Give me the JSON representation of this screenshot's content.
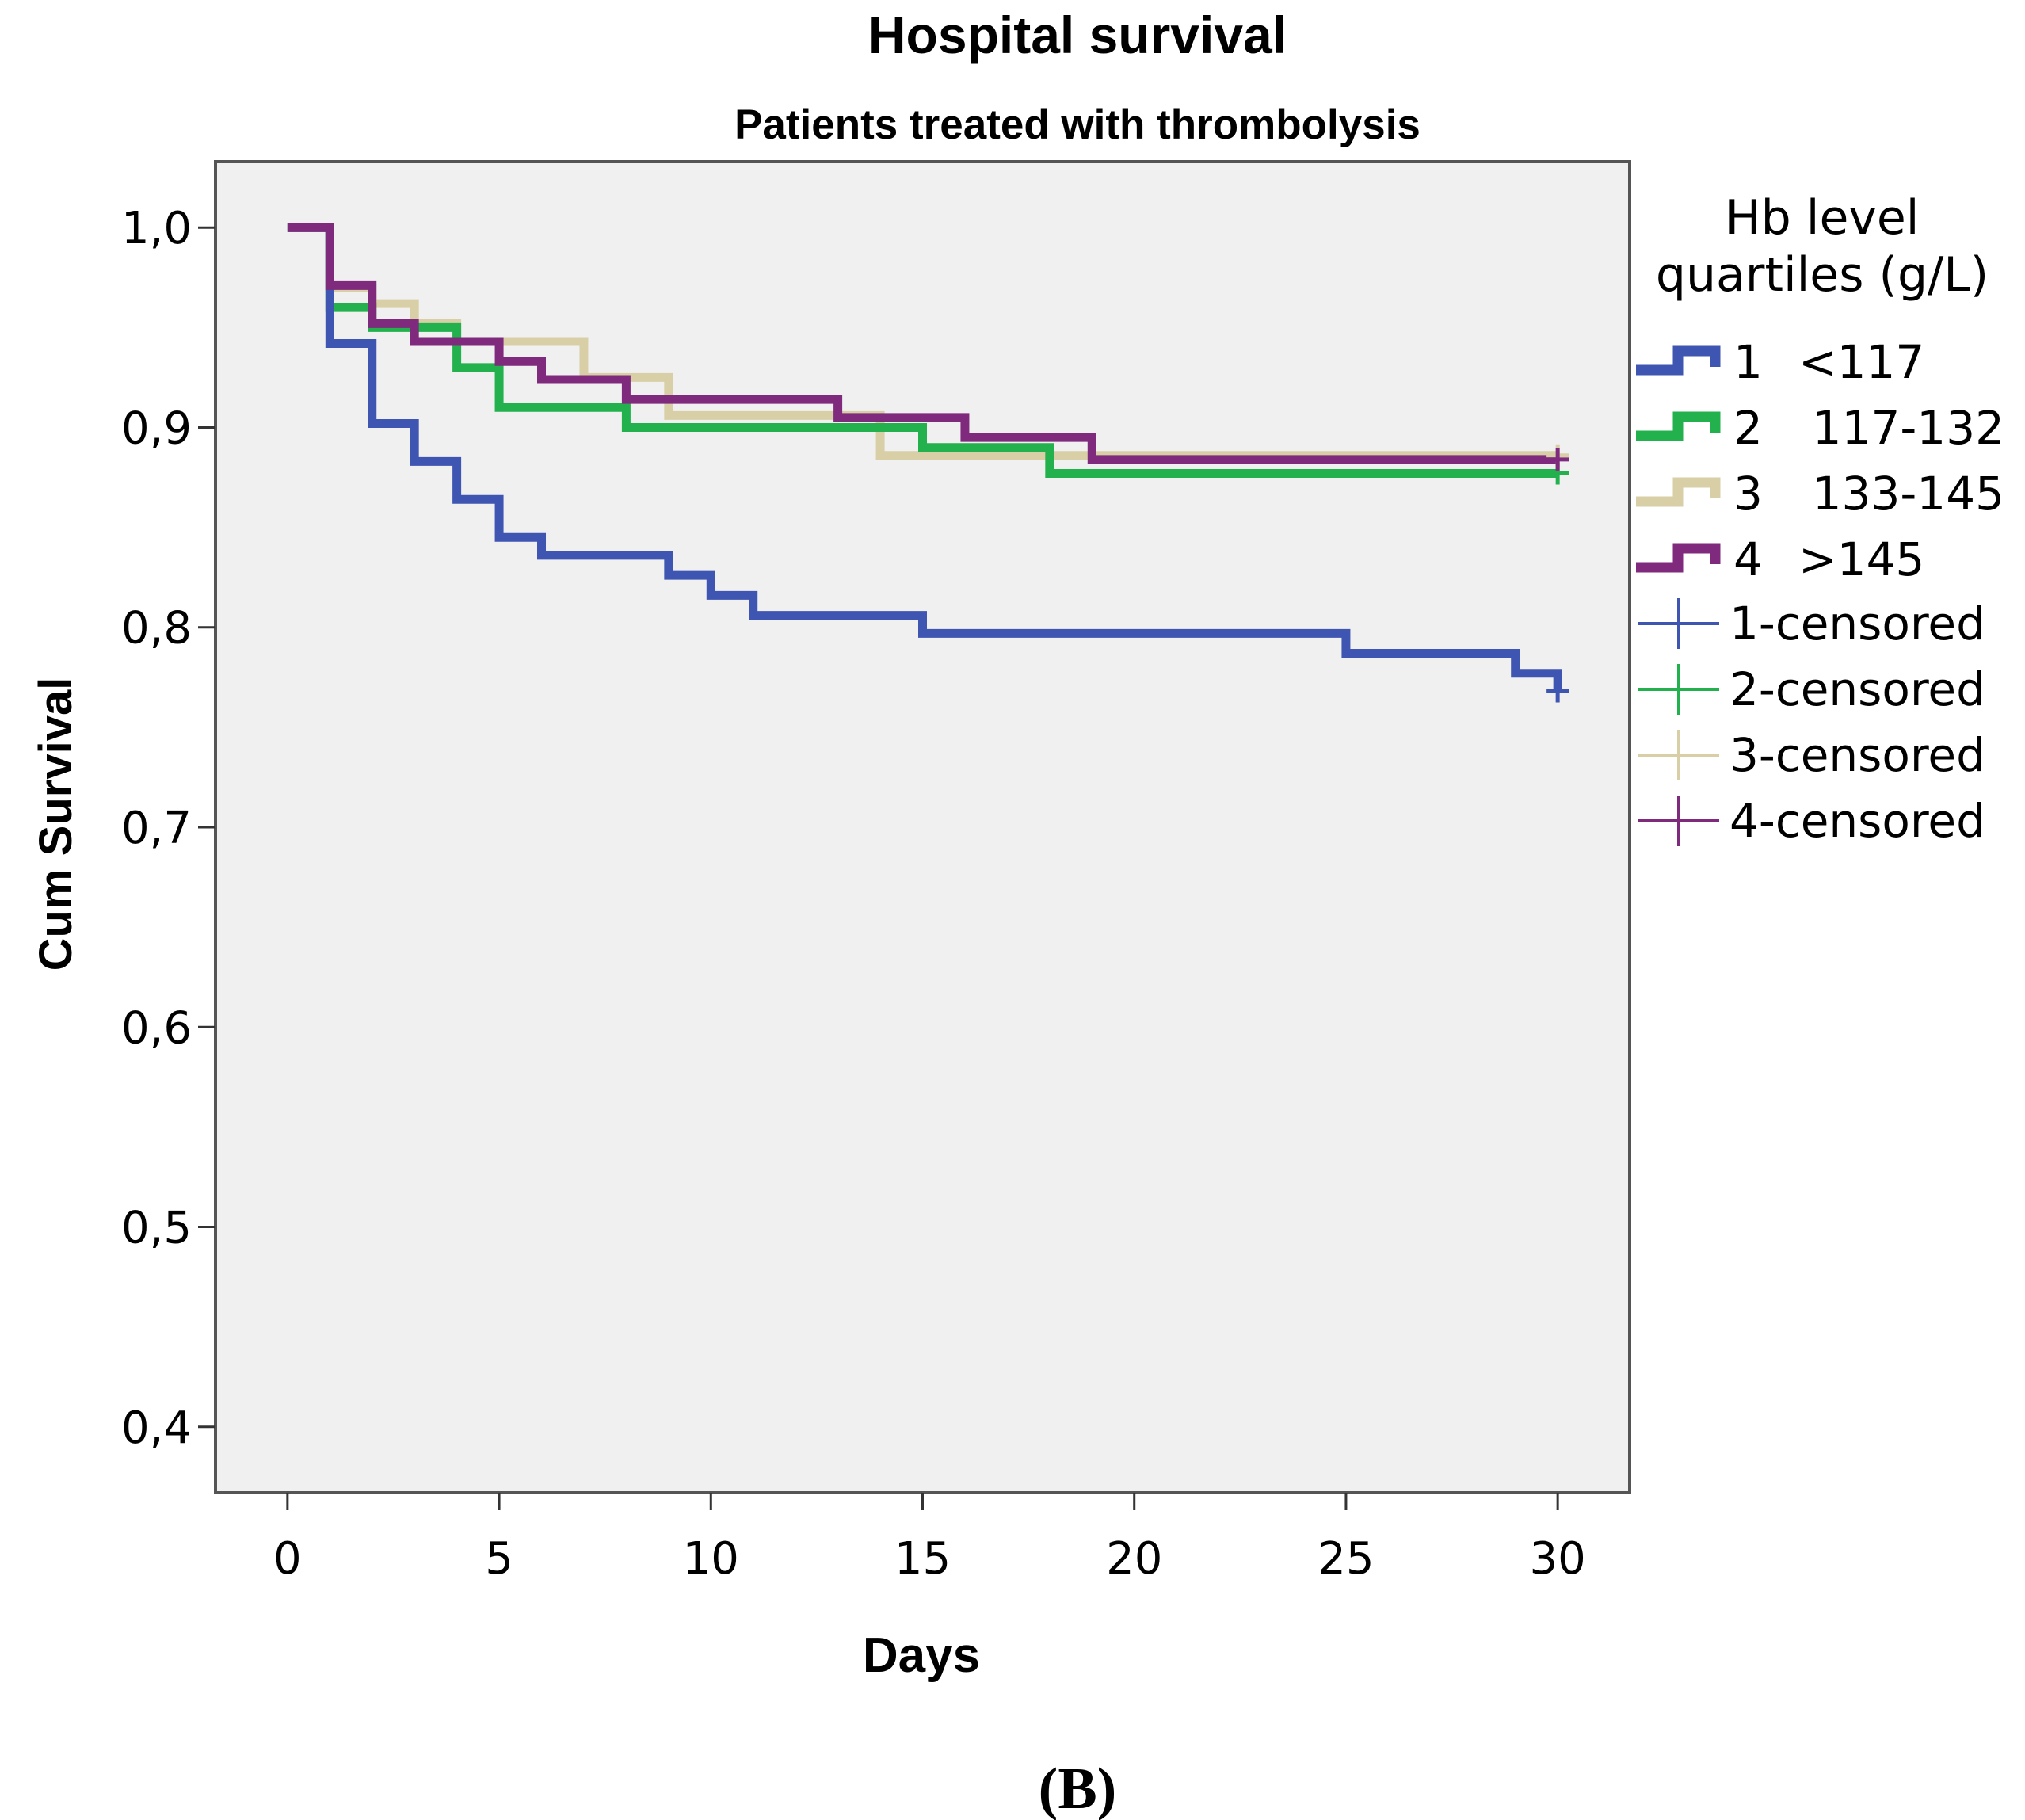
{
  "chart_data": {
    "type": "line",
    "subtype": "kaplan-meier step curve",
    "title": "Hospital survival",
    "subtitle": "Patients treated with thrombolysis",
    "xlabel": "Days",
    "ylabel": "Cum Survival",
    "xlim": [
      -1.7,
      31.7
    ],
    "ylim": [
      0.367,
      1.033
    ],
    "x_ticks": [
      0,
      5,
      10,
      15,
      20,
      25,
      30
    ],
    "x_tick_labels": [
      "0",
      "5",
      "10",
      "15",
      "20",
      "25",
      "30"
    ],
    "y_ticks": [
      1.0,
      0.9,
      0.8,
      0.7,
      0.6,
      0.5,
      0.4
    ],
    "y_tick_labels": [
      "1,0",
      "0,9",
      "0,8",
      "0,7",
      "0,6",
      "0,5",
      "0,4"
    ],
    "legend_title": "Hb level quartiles (g/L)",
    "legend_title_lines": [
      "Hb level",
      "quartiles (g/L)"
    ],
    "legend_position": "right",
    "grid": false,
    "panel_label": "(B)",
    "series": [
      {
        "name": "1   <117",
        "group": "1",
        "range": "<117",
        "color": "#3F55B2",
        "censored_label": "1-censored",
        "steps": [
          [
            0,
            1.0
          ],
          [
            1,
            0.942
          ],
          [
            2,
            0.902
          ],
          [
            3,
            0.883
          ],
          [
            4,
            0.864
          ],
          [
            5,
            0.845
          ],
          [
            6,
            0.836
          ],
          [
            9,
            0.826
          ],
          [
            10,
            0.816
          ],
          [
            11,
            0.806
          ],
          [
            15,
            0.797
          ],
          [
            25,
            0.787
          ],
          [
            29,
            0.777
          ],
          [
            30,
            0.768
          ]
        ],
        "censored": [
          [
            30,
            0.768
          ]
        ]
      },
      {
        "name": "2      117-132",
        "group": "2",
        "range": "117-132",
        "color": "#22B14C",
        "censored_label": "2-censored",
        "steps": [
          [
            0,
            1.0
          ],
          [
            1,
            0.96
          ],
          [
            2,
            0.95
          ],
          [
            4,
            0.93
          ],
          [
            5,
            0.91
          ],
          [
            8,
            0.9
          ],
          [
            15,
            0.89
          ],
          [
            18,
            0.877
          ],
          [
            30,
            0.877
          ]
        ],
        "censored": [
          [
            30,
            0.877
          ]
        ]
      },
      {
        "name": "3      133-145",
        "group": "3",
        "range": "133-145",
        "color": "#D8CFA6",
        "censored_label": "3-censored",
        "steps": [
          [
            0,
            1.0
          ],
          [
            1,
            0.97
          ],
          [
            2,
            0.962
          ],
          [
            3,
            0.952
          ],
          [
            4,
            0.943
          ],
          [
            7,
            0.925
          ],
          [
            9,
            0.906
          ],
          [
            14,
            0.886
          ],
          [
            30,
            0.886
          ]
        ],
        "censored": [
          [
            30,
            0.886
          ]
        ]
      },
      {
        "name": "4   >145",
        "group": "4",
        "range": ">145",
        "color": "#7F2A7D",
        "censored_label": "4-censored",
        "steps": [
          [
            0,
            1.0
          ],
          [
            1,
            0.971
          ],
          [
            2,
            0.952
          ],
          [
            3,
            0.943
          ],
          [
            5,
            0.933
          ],
          [
            6,
            0.924
          ],
          [
            8,
            0.914
          ],
          [
            13,
            0.905
          ],
          [
            16,
            0.895
          ],
          [
            19,
            0.884
          ],
          [
            30,
            0.884
          ]
        ],
        "censored": [
          [
            30,
            0.884
          ]
        ]
      }
    ]
  }
}
